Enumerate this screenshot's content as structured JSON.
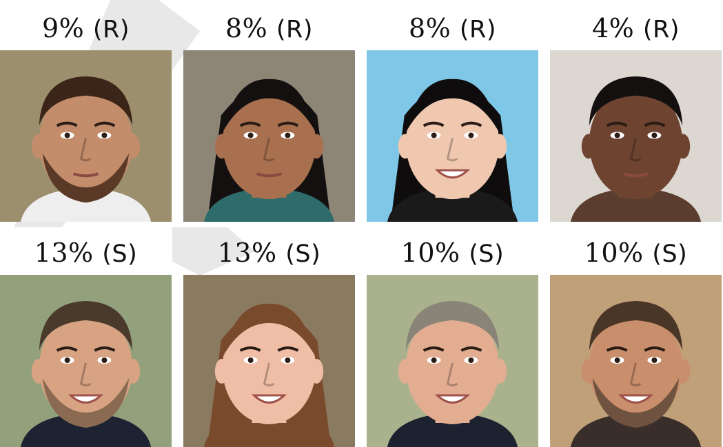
{
  "rows": [
    {
      "cells": [
        {
          "percent": "9%",
          "tag": "(R)",
          "photo": {
            "bg": "#9c8f6e",
            "skin": "#c38d6b",
            "hair": "#3b2418",
            "beard": true,
            "beardColor": "#5a3a27",
            "longHair": false,
            "shirt": "#eeeeee",
            "smile": false
          }
        },
        {
          "percent": "8%",
          "tag": "(R)",
          "photo": {
            "bg": "#8d8576",
            "skin": "#a8704f",
            "hair": "#141010",
            "beard": false,
            "longHair": true,
            "shirt": "#2f6b6a",
            "smile": false
          }
        },
        {
          "percent": "8%",
          "tag": "(R)",
          "photo": {
            "bg": "#7fc7e6",
            "skin": "#f0c8b0",
            "hair": "#0e0c0c",
            "beard": false,
            "longHair": true,
            "shirt": "#1a1a1a",
            "smile": true
          }
        },
        {
          "percent": "4%",
          "tag": "(R)",
          "photo": {
            "bg": "#dcd7d0",
            "skin": "#6e4431",
            "hair": "#141010",
            "beard": false,
            "longHair": false,
            "shirt": "#5a3d2e",
            "smile": false
          }
        }
      ]
    },
    {
      "cells": [
        {
          "percent": "13%",
          "tag": "(S)",
          "photo": {
            "bg": "#93a07c",
            "skin": "#d8a383",
            "hair": "#4a3a2c",
            "beard": true,
            "beardColor": "#8a6a50",
            "longHair": false,
            "shirt": "#1d2333",
            "smile": true
          }
        },
        {
          "percent": "13%",
          "tag": "(S)",
          "photo": {
            "bg": "#8a7a60",
            "skin": "#f0bea6",
            "hair": "#7a4a2c",
            "beard": false,
            "longHair": true,
            "shirt": "#7a4a2c",
            "smile": true
          }
        },
        {
          "percent": "10%",
          "tag": "(S)",
          "photo": {
            "bg": "#a9b28c",
            "skin": "#e3ad92",
            "hair": "#8a8378",
            "beard": false,
            "longHair": false,
            "shirt": "#1c2230",
            "smile": true
          }
        },
        {
          "percent": "10%",
          "tag": "(S)",
          "photo": {
            "bg": "#c0a079",
            "skin": "#c98e6c",
            "hair": "#4a3626",
            "beard": true,
            "beardColor": "#6f5240",
            "longHair": false,
            "shirt": "#3a2e2a",
            "smile": true
          }
        }
      ]
    }
  ]
}
